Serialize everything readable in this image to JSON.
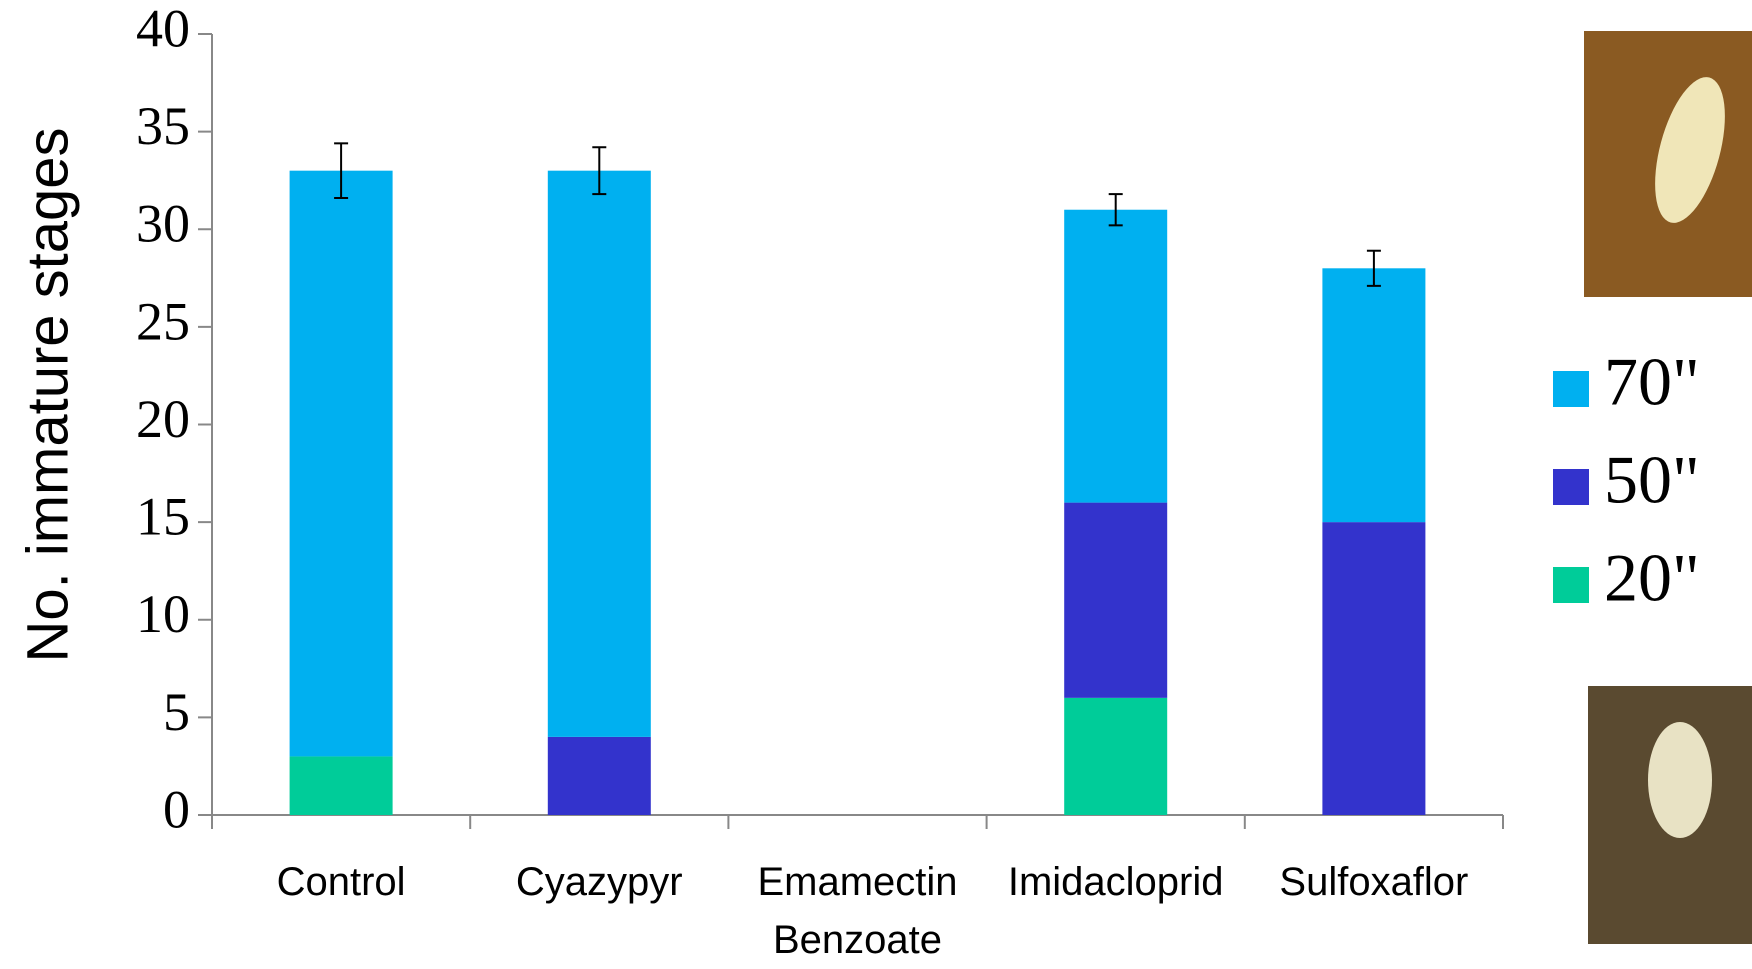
{
  "chart_data": {
    "type": "stacked_bar",
    "y_label": "No. immature stages",
    "categories": [
      "Control",
      "Cyazypyr",
      "Emamectin Benzoate",
      "Imidacloprid",
      "Sulfoxaflor"
    ],
    "series": [
      {
        "name": "20\"",
        "color": "#00cc99",
        "values": [
          3,
          0,
          0,
          6,
          0
        ]
      },
      {
        "name": "50\"",
        "color": "#3333cc",
        "values": [
          0,
          4,
          0,
          10,
          15
        ]
      },
      {
        "name": "70\"",
        "color": "#00b0f0",
        "values": [
          30,
          29,
          0,
          15,
          13
        ]
      }
    ],
    "errors": [
      1.4,
      1.2,
      null,
      0.8,
      0.9
    ],
    "ylim": [
      0,
      40
    ],
    "yticks": [
      0,
      5,
      10,
      15,
      20,
      25,
      30,
      35,
      40
    ]
  }
}
